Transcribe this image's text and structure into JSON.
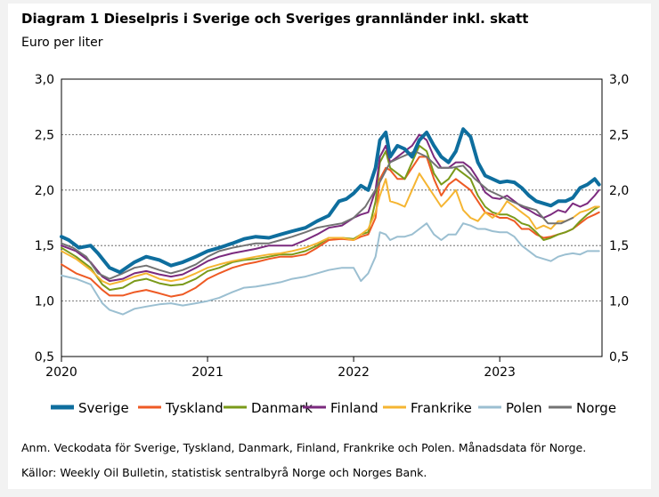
{
  "header": {
    "title": "Diagram 1 Dieselpris i Sverige och Sveriges grannländer inkl. skatt",
    "unit": "Euro per liter"
  },
  "footnotes": {
    "note": "Anm. Veckodata för Sverige, Tyskland, Danmark, Finland, Frankrike och Polen. Månadsdata för Norge.",
    "sources": "Källor: Weekly Oil Bulletin, statistisk sentralbyrå Norge och Norges Bank."
  },
  "chart_data": {
    "type": "line",
    "title": "Diagram 1 Dieselpris i Sverige och Sveriges grannländer inkl. skatt",
    "ylabel": "Euro per liter",
    "xlim": [
      2020,
      2023.7
    ],
    "ylim": [
      0.5,
      3.0
    ],
    "y_ticks": [
      "0,5",
      "1,0",
      "1,5",
      "2,0",
      "2,5",
      "3,0"
    ],
    "x_ticks": [
      "2020",
      "2021",
      "2022",
      "2023"
    ],
    "grid": "horizontal dashed",
    "legend_position": "bottom",
    "series": [
      {
        "name": "Sverige",
        "color": "#0e6e9e",
        "width": 4,
        "x": [
          2020.0,
          2020.05,
          2020.12,
          2020.2,
          2020.25,
          2020.33,
          2020.4,
          2020.5,
          2020.58,
          2020.67,
          2020.75,
          2020.83,
          2020.92,
          2021.0,
          2021.08,
          2021.17,
          2021.25,
          2021.33,
          2021.42,
          2021.5,
          2021.58,
          2021.67,
          2021.75,
          2021.83,
          2021.9,
          2021.95,
          2022.0,
          2022.05,
          2022.1,
          2022.15,
          2022.18,
          2022.22,
          2022.25,
          2022.3,
          2022.35,
          2022.4,
          2022.45,
          2022.5,
          2022.55,
          2022.6,
          2022.65,
          2022.7,
          2022.75,
          2022.8,
          2022.85,
          2022.9,
          2022.95,
          2023.0,
          2023.05,
          2023.1,
          2023.15,
          2023.2,
          2023.25,
          2023.3,
          2023.35,
          2023.4,
          2023.45,
          2023.5,
          2023.55,
          2023.6,
          2023.65,
          2023.68
        ],
        "values": [
          1.58,
          1.55,
          1.48,
          1.5,
          1.43,
          1.3,
          1.26,
          1.35,
          1.4,
          1.37,
          1.32,
          1.35,
          1.4,
          1.45,
          1.48,
          1.52,
          1.56,
          1.58,
          1.57,
          1.6,
          1.63,
          1.66,
          1.72,
          1.77,
          1.9,
          1.92,
          1.97,
          2.04,
          2.0,
          2.2,
          2.45,
          2.52,
          2.3,
          2.4,
          2.37,
          2.3,
          2.45,
          2.52,
          2.4,
          2.3,
          2.25,
          2.35,
          2.55,
          2.48,
          2.25,
          2.13,
          2.1,
          2.07,
          2.08,
          2.07,
          2.02,
          1.95,
          1.9,
          1.88,
          1.86,
          1.9,
          1.9,
          1.93,
          2.02,
          2.05,
          2.1,
          2.05
        ]
      },
      {
        "name": "Tyskland",
        "color": "#ee5a24",
        "width": 2,
        "x": [
          2020.0,
          2020.1,
          2020.2,
          2020.28,
          2020.33,
          2020.42,
          2020.5,
          2020.58,
          2020.67,
          2020.75,
          2020.83,
          2020.92,
          2021.0,
          2021.08,
          2021.17,
          2021.25,
          2021.33,
          2021.42,
          2021.5,
          2021.58,
          2021.67,
          2021.75,
          2021.83,
          2021.92,
          2022.0,
          2022.05,
          2022.1,
          2022.15,
          2022.18,
          2022.22,
          2022.25,
          2022.3,
          2022.35,
          2022.4,
          2022.45,
          2022.5,
          2022.55,
          2022.6,
          2022.65,
          2022.7,
          2022.75,
          2022.8,
          2022.85,
          2022.9,
          2022.95,
          2023.0,
          2023.05,
          2023.1,
          2023.15,
          2023.2,
          2023.25,
          2023.3,
          2023.35,
          2023.4,
          2023.45,
          2023.5,
          2023.55,
          2023.6,
          2023.65,
          2023.68
        ],
        "values": [
          1.33,
          1.25,
          1.2,
          1.1,
          1.05,
          1.05,
          1.08,
          1.1,
          1.07,
          1.04,
          1.06,
          1.12,
          1.2,
          1.25,
          1.3,
          1.33,
          1.35,
          1.38,
          1.4,
          1.4,
          1.42,
          1.48,
          1.55,
          1.56,
          1.55,
          1.58,
          1.6,
          1.75,
          2.1,
          2.2,
          2.18,
          2.1,
          2.1,
          2.2,
          2.3,
          2.3,
          2.1,
          1.95,
          2.05,
          2.1,
          2.05,
          2.0,
          1.9,
          1.8,
          1.78,
          1.75,
          1.75,
          1.72,
          1.65,
          1.65,
          1.6,
          1.57,
          1.58,
          1.6,
          1.62,
          1.65,
          1.7,
          1.75,
          1.78,
          1.8
        ]
      },
      {
        "name": "Danmark",
        "color": "#7a9a1a",
        "width": 2,
        "x": [
          2020.0,
          2020.1,
          2020.2,
          2020.28,
          2020.33,
          2020.42,
          2020.5,
          2020.58,
          2020.67,
          2020.75,
          2020.83,
          2020.92,
          2021.0,
          2021.08,
          2021.17,
          2021.25,
          2021.33,
          2021.42,
          2021.5,
          2021.58,
          2021.67,
          2021.75,
          2021.83,
          2021.92,
          2022.0,
          2022.05,
          2022.1,
          2022.15,
          2022.18,
          2022.22,
          2022.25,
          2022.3,
          2022.35,
          2022.4,
          2022.45,
          2022.5,
          2022.55,
          2022.6,
          2022.65,
          2022.7,
          2022.75,
          2022.8,
          2022.85,
          2022.9,
          2022.95,
          2023.0,
          2023.05,
          2023.1,
          2023.15,
          2023.2,
          2023.25,
          2023.3,
          2023.35,
          2023.4,
          2023.45,
          2023.5,
          2023.55,
          2023.6,
          2023.65,
          2023.68
        ],
        "values": [
          1.48,
          1.4,
          1.3,
          1.15,
          1.1,
          1.12,
          1.18,
          1.2,
          1.16,
          1.14,
          1.15,
          1.2,
          1.27,
          1.3,
          1.35,
          1.37,
          1.38,
          1.4,
          1.42,
          1.42,
          1.45,
          1.5,
          1.57,
          1.57,
          1.56,
          1.6,
          1.62,
          1.9,
          2.25,
          2.35,
          2.2,
          2.15,
          2.1,
          2.25,
          2.4,
          2.35,
          2.15,
          2.05,
          2.1,
          2.2,
          2.15,
          2.1,
          1.95,
          1.85,
          1.8,
          1.78,
          1.78,
          1.75,
          1.7,
          1.68,
          1.62,
          1.55,
          1.57,
          1.6,
          1.62,
          1.65,
          1.72,
          1.78,
          1.83,
          1.85
        ]
      },
      {
        "name": "Finland",
        "color": "#7b2a7e",
        "width": 2,
        "x": [
          2020.0,
          2020.1,
          2020.2,
          2020.28,
          2020.33,
          2020.42,
          2020.5,
          2020.58,
          2020.67,
          2020.75,
          2020.83,
          2020.92,
          2021.0,
          2021.08,
          2021.17,
          2021.25,
          2021.33,
          2021.42,
          2021.5,
          2021.58,
          2021.67,
          2021.75,
          2021.83,
          2021.92,
          2022.0,
          2022.05,
          2022.1,
          2022.15,
          2022.18,
          2022.22,
          2022.25,
          2022.3,
          2022.35,
          2022.4,
          2022.45,
          2022.5,
          2022.55,
          2022.6,
          2022.65,
          2022.7,
          2022.75,
          2022.8,
          2022.85,
          2022.9,
          2022.95,
          2023.0,
          2023.05,
          2023.1,
          2023.15,
          2023.2,
          2023.25,
          2023.3,
          2023.35,
          2023.4,
          2023.45,
          2023.5,
          2023.55,
          2023.6,
          2023.65,
          2023.68
        ],
        "values": [
          1.5,
          1.45,
          1.35,
          1.22,
          1.18,
          1.2,
          1.25,
          1.27,
          1.24,
          1.22,
          1.24,
          1.3,
          1.36,
          1.4,
          1.43,
          1.45,
          1.47,
          1.5,
          1.5,
          1.5,
          1.55,
          1.6,
          1.66,
          1.68,
          1.75,
          1.78,
          1.8,
          2.0,
          2.3,
          2.4,
          2.25,
          2.3,
          2.35,
          2.4,
          2.5,
          2.45,
          2.3,
          2.2,
          2.2,
          2.25,
          2.25,
          2.2,
          2.1,
          1.98,
          1.93,
          1.92,
          1.95,
          1.9,
          1.85,
          1.82,
          1.78,
          1.75,
          1.78,
          1.82,
          1.8,
          1.88,
          1.85,
          1.88,
          1.95,
          2.0
        ]
      },
      {
        "name": "Frankrike",
        "color": "#f5b532",
        "width": 2,
        "x": [
          2020.0,
          2020.1,
          2020.2,
          2020.28,
          2020.33,
          2020.42,
          2020.5,
          2020.58,
          2020.67,
          2020.75,
          2020.83,
          2020.92,
          2021.0,
          2021.08,
          2021.17,
          2021.25,
          2021.33,
          2021.42,
          2021.5,
          2021.58,
          2021.67,
          2021.75,
          2021.83,
          2021.92,
          2022.0,
          2022.05,
          2022.1,
          2022.15,
          2022.18,
          2022.22,
          2022.25,
          2022.3,
          2022.35,
          2022.4,
          2022.45,
          2022.5,
          2022.55,
          2022.6,
          2022.65,
          2022.7,
          2022.75,
          2022.8,
          2022.85,
          2022.9,
          2022.95,
          2023.0,
          2023.05,
          2023.1,
          2023.15,
          2023.2,
          2023.25,
          2023.3,
          2023.35,
          2023.4,
          2023.45,
          2023.5,
          2023.55,
          2023.6,
          2023.65,
          2023.68
        ],
        "values": [
          1.45,
          1.38,
          1.28,
          1.18,
          1.15,
          1.18,
          1.22,
          1.25,
          1.2,
          1.18,
          1.2,
          1.25,
          1.3,
          1.33,
          1.36,
          1.38,
          1.4,
          1.42,
          1.43,
          1.45,
          1.48,
          1.52,
          1.57,
          1.57,
          1.55,
          1.6,
          1.65,
          1.8,
          1.95,
          2.1,
          1.9,
          1.88,
          1.85,
          2.0,
          2.15,
          2.05,
          1.95,
          1.85,
          1.92,
          2.0,
          1.82,
          1.75,
          1.72,
          1.8,
          1.75,
          1.8,
          1.9,
          1.85,
          1.8,
          1.75,
          1.65,
          1.68,
          1.65,
          1.72,
          1.72,
          1.75,
          1.8,
          1.82,
          1.85,
          1.85
        ]
      },
      {
        "name": "Polen",
        "color": "#9bbfd1",
        "width": 2,
        "x": [
          2020.0,
          2020.1,
          2020.2,
          2020.28,
          2020.33,
          2020.42,
          2020.5,
          2020.58,
          2020.67,
          2020.75,
          2020.83,
          2020.92,
          2021.0,
          2021.08,
          2021.17,
          2021.25,
          2021.33,
          2021.42,
          2021.5,
          2021.58,
          2021.67,
          2021.75,
          2021.83,
          2021.92,
          2022.0,
          2022.05,
          2022.1,
          2022.15,
          2022.18,
          2022.22,
          2022.25,
          2022.3,
          2022.35,
          2022.4,
          2022.45,
          2022.5,
          2022.55,
          2022.6,
          2022.65,
          2022.7,
          2022.75,
          2022.8,
          2022.85,
          2022.9,
          2022.95,
          2023.0,
          2023.05,
          2023.1,
          2023.15,
          2023.2,
          2023.25,
          2023.3,
          2023.35,
          2023.4,
          2023.45,
          2023.5,
          2023.55,
          2023.6,
          2023.65,
          2023.68
        ],
        "values": [
          1.23,
          1.2,
          1.15,
          0.98,
          0.92,
          0.88,
          0.93,
          0.95,
          0.97,
          0.98,
          0.96,
          0.98,
          1.0,
          1.03,
          1.08,
          1.12,
          1.13,
          1.15,
          1.17,
          1.2,
          1.22,
          1.25,
          1.28,
          1.3,
          1.3,
          1.18,
          1.25,
          1.4,
          1.62,
          1.6,
          1.55,
          1.58,
          1.58,
          1.6,
          1.65,
          1.7,
          1.6,
          1.55,
          1.6,
          1.6,
          1.7,
          1.68,
          1.65,
          1.65,
          1.63,
          1.62,
          1.62,
          1.58,
          1.5,
          1.45,
          1.4,
          1.38,
          1.36,
          1.4,
          1.42,
          1.43,
          1.42,
          1.45,
          1.45,
          1.45
        ]
      },
      {
        "name": "Norge",
        "color": "#737373",
        "width": 2,
        "x": [
          2020.0,
          2020.08,
          2020.17,
          2020.25,
          2020.33,
          2020.42,
          2020.5,
          2020.58,
          2020.67,
          2020.75,
          2020.83,
          2020.92,
          2021.0,
          2021.08,
          2021.17,
          2021.25,
          2021.33,
          2021.42,
          2021.5,
          2021.58,
          2021.67,
          2021.75,
          2021.83,
          2021.92,
          2022.0,
          2022.08,
          2022.17,
          2022.25,
          2022.33,
          2022.42,
          2022.5,
          2022.58,
          2022.67,
          2022.75,
          2022.83,
          2022.92,
          2023.0,
          2023.08,
          2023.17,
          2023.25,
          2023.33,
          2023.42,
          2023.5
        ],
        "values": [
          1.52,
          1.48,
          1.4,
          1.25,
          1.2,
          1.25,
          1.3,
          1.32,
          1.28,
          1.25,
          1.28,
          1.33,
          1.4,
          1.45,
          1.48,
          1.5,
          1.52,
          1.52,
          1.55,
          1.58,
          1.62,
          1.66,
          1.68,
          1.7,
          1.75,
          1.85,
          2.05,
          2.25,
          2.3,
          2.35,
          2.3,
          2.2,
          2.2,
          2.22,
          2.1,
          2.0,
          1.95,
          1.9,
          1.85,
          1.82,
          1.7,
          1.7,
          1.75
        ]
      }
    ]
  }
}
